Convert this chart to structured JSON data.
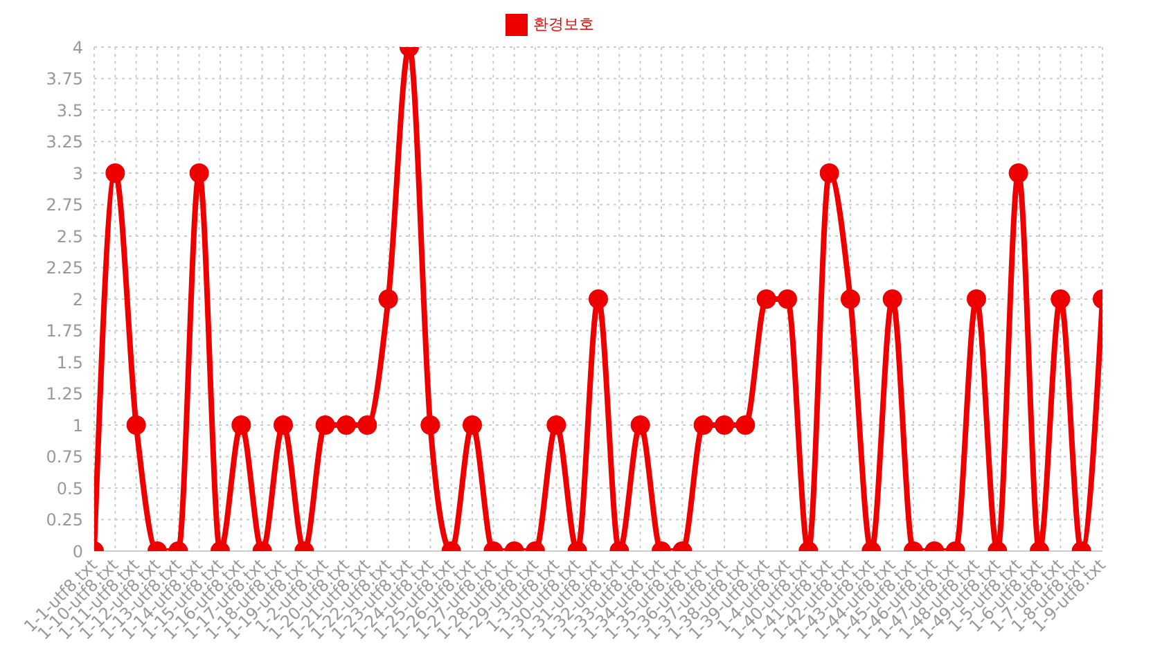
{
  "chart_data": {
    "type": "line",
    "categories": [
      "1-1-utf8.txt",
      "1-10-utf8.txt",
      "1-11-utf8.txt",
      "1-12-utf8.txt",
      "1-13-utf8.txt",
      "1-14-utf8.txt",
      "1-15-utf8.txt",
      "1-16-utf8.txt",
      "1-17-utf8.txt",
      "1-18-utf8.txt",
      "1-19-utf8.txt",
      "1-2-utf8.txt",
      "1-20-utf8.txt",
      "1-21-utf8.txt",
      "1-22-utf8.txt",
      "1-23-utf8.txt",
      "1-24-utf8.txt",
      "1-25-utf8.txt",
      "1-26-utf8.txt",
      "1-27-utf8.txt",
      "1-28-utf8.txt",
      "1-29-utf8.txt",
      "1-3-utf8.txt",
      "1-30-utf8.txt",
      "1-31-utf8.txt",
      "1-32-utf8.txt",
      "1-33-utf8.txt",
      "1-34-utf8.txt",
      "1-35-utf8.txt",
      "1-36-utf8.txt",
      "1-37-utf8.txt",
      "1-38-utf8.txt",
      "1-39-utf8.txt",
      "1-4-utf8.txt",
      "1-40-utf8.txt",
      "1-41-utf8.txt",
      "1-42-utf8.txt",
      "1-43-utf8.txt",
      "1-44-utf8.txt",
      "1-45-utf8.txt",
      "1-46-utf8.txt",
      "1-47-utf8.txt",
      "1-48-utf8.txt",
      "1-49-utf8.txt",
      "1-5-utf8.txt",
      "1-6-utf8.txt",
      "1-7-utf8.txt",
      "1-8-utf8.txt",
      "1-9-utf8.txt"
    ],
    "series": [
      {
        "name": "환경보호",
        "color": "#ee0000",
        "values": [
          0,
          3,
          1,
          0,
          0,
          3,
          0,
          1,
          0,
          1,
          0,
          1,
          1,
          1,
          2,
          4,
          1,
          0,
          1,
          0,
          0,
          0,
          1,
          0,
          2,
          0,
          1,
          0,
          0,
          1,
          1,
          1,
          2,
          2,
          0,
          3,
          2,
          0,
          2,
          0,
          0,
          0,
          2,
          0,
          3,
          0,
          2,
          0,
          2
        ]
      }
    ],
    "ylim": [
      0,
      4
    ],
    "yticks": [
      0,
      0.25,
      0.5,
      0.75,
      1,
      1.25,
      1.5,
      1.75,
      2,
      2.25,
      2.5,
      2.75,
      3,
      3.25,
      3.5,
      3.75,
      4
    ],
    "grid": true,
    "legend": "top",
    "marker": "circle",
    "line_style": "solid"
  }
}
